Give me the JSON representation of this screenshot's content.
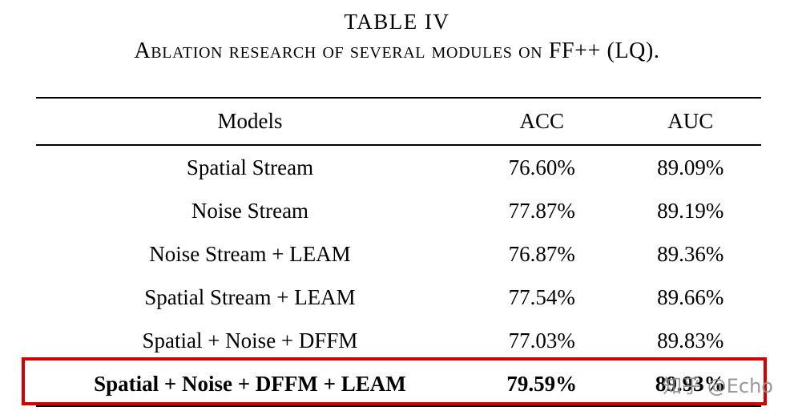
{
  "caption": {
    "line1": "TABLE IV",
    "line2": "Ablation research of several modules on FF++ (LQ)."
  },
  "table": {
    "headers": {
      "models": "Models",
      "acc": "ACC",
      "auc": "AUC"
    },
    "rows": [
      {
        "model": "Spatial Stream",
        "acc": "76.60%",
        "auc": "89.09%"
      },
      {
        "model": "Noise Stream",
        "acc": "77.87%",
        "auc": "89.19%"
      },
      {
        "model": "Noise Stream + LEAM",
        "acc": "76.87%",
        "auc": "89.36%"
      },
      {
        "model": "Spatial Stream + LEAM",
        "acc": "77.54%",
        "auc": "89.66%"
      },
      {
        "model": "Spatial + Noise + DFFM",
        "acc": "77.03%",
        "auc": "89.83%"
      },
      {
        "model": "Spatial + Noise + DFFM + LEAM",
        "acc": "79.59%",
        "auc": "89.93%"
      }
    ],
    "highlighted_row_index": 5
  },
  "watermark": {
    "text": "知乎 @Echo"
  },
  "colors": {
    "highlight_border": "#d40000",
    "watermark": "#8f8f8f"
  }
}
